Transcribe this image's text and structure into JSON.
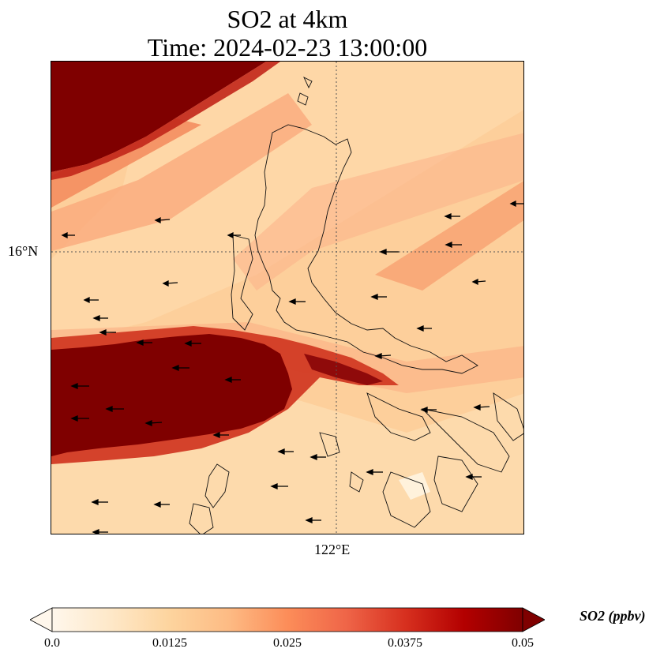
{
  "title": {
    "line1": "SO2 at 4km",
    "line2": "Time: 2024-02-23 13:00:00"
  },
  "axes": {
    "lat_tick": "16°N",
    "lon_tick": "122°E"
  },
  "colorbar": {
    "label": "SO2 (ppbv)",
    "ticks": [
      "0.0",
      "0.0125",
      "0.025",
      "0.0375",
      "0.05"
    ],
    "min": 0.0,
    "max": 0.05,
    "colormap": "OrRd",
    "colors": [
      "#fff7ec",
      "#fee8c8",
      "#fdd49e",
      "#fdbb84",
      "#fc8d59",
      "#ef6548",
      "#d7301f",
      "#b30000",
      "#7f0000"
    ]
  },
  "map": {
    "variable": "SO2",
    "level": "4km",
    "background_color": "#fdcf9b",
    "plume_color": "#7f0000",
    "gridline_style": "dotted",
    "features": [
      "coastlines",
      "wind-vectors"
    ],
    "wind_direction": "westward"
  }
}
